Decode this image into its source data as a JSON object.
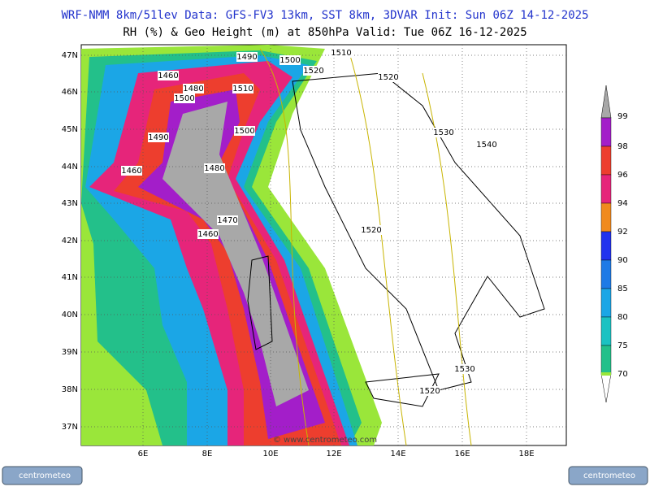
{
  "header": {
    "line1": "WRF-NMM 8km/51lev  Data: GFS-FV3 13km, SST 8km, 3DVAR  Init: Sun 06Z 14-12-2025",
    "line2": "RH (%) & Geo Height (m) at 850hPa  Valid: Tue 06Z 16-12-2025"
  },
  "map": {
    "lat_labels": [
      "47N",
      "46N",
      "45N",
      "44N",
      "43N",
      "42N",
      "41N",
      "40N",
      "39N",
      "38N",
      "37N"
    ],
    "lon_labels": [
      "6E",
      "8E",
      "10E",
      "12E",
      "14E",
      "16E",
      "18E"
    ],
    "contour_labels": [
      "1490",
      "1500",
      "1510",
      "1520",
      "1520",
      "1460",
      "1480",
      "1500",
      "1510",
      "1500",
      "1490",
      "1460",
      "1480",
      "1530",
      "1540",
      "1470",
      "1460",
      "1520",
      "1530",
      "1520"
    ],
    "watermark": "© www.centrometeo.com"
  },
  "colorbar": {
    "labels": [
      "99",
      "98",
      "96",
      "94",
      "92",
      "90",
      "85",
      "80",
      "75",
      "70"
    ]
  },
  "logos": [
    "centrometeo",
    "centrometeo"
  ]
}
